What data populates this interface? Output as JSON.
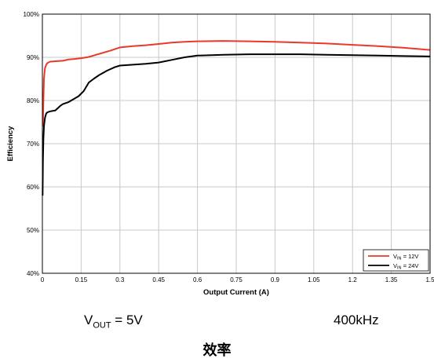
{
  "chart_data": {
    "type": "line",
    "title": "",
    "xlabel": "Output Current (A)",
    "ylabel": "Efficiency",
    "xlim": [
      0,
      1.5
    ],
    "ylim": [
      40,
      100
    ],
    "x_ticks": [
      "0",
      "0.15",
      "0.3",
      "0.45",
      "0.6",
      "0.75",
      "0.9",
      "1.05",
      "1.2",
      "1.35",
      "1.5"
    ],
    "y_ticks": [
      "40%",
      "50%",
      "60%",
      "70%",
      "80%",
      "90%",
      "100%"
    ],
    "grid": true,
    "legend_position": "bottom-right",
    "series": [
      {
        "name_main": "V",
        "name_sub": "IN",
        "name_rest": " = 12V",
        "color": "#e8392a",
        "x": [
          0.002,
          0.004,
          0.006,
          0.01,
          0.015,
          0.02,
          0.03,
          0.05,
          0.08,
          0.1,
          0.12,
          0.15,
          0.18,
          0.22,
          0.26,
          0.3,
          0.35,
          0.4,
          0.45,
          0.5,
          0.55,
          0.6,
          0.7,
          0.8,
          0.9,
          1.0,
          1.1,
          1.2,
          1.3,
          1.4,
          1.5
        ],
        "y": [
          74,
          80,
          85,
          87.5,
          88.3,
          88.7,
          89,
          89.1,
          89.2,
          89.5,
          89.6,
          89.8,
          90.1,
          90.8,
          91.5,
          92.3,
          92.6,
          92.8,
          93.1,
          93.4,
          93.6,
          93.7,
          93.8,
          93.7,
          93.6,
          93.4,
          93.2,
          92.9,
          92.6,
          92.2,
          91.7
        ]
      },
      {
        "name_main": "V",
        "name_sub": "IN",
        "name_rest": " = 24V",
        "color": "#000000",
        "x": [
          0.001,
          0.002,
          0.004,
          0.006,
          0.01,
          0.015,
          0.02,
          0.03,
          0.05,
          0.07,
          0.08,
          0.1,
          0.12,
          0.14,
          0.16,
          0.18,
          0.2,
          0.22,
          0.25,
          0.28,
          0.3,
          0.35,
          0.4,
          0.45,
          0.5,
          0.55,
          0.6,
          0.7,
          0.8,
          0.9,
          1.0,
          1.1,
          1.2,
          1.3,
          1.4,
          1.5
        ],
        "y": [
          58,
          66,
          71,
          74,
          76,
          77,
          77.3,
          77.5,
          77.7,
          78.8,
          79.2,
          79.6,
          80.3,
          81.0,
          82.2,
          84.2,
          85.1,
          85.9,
          86.9,
          87.7,
          88.1,
          88.3,
          88.5,
          88.8,
          89.4,
          90.0,
          90.4,
          90.6,
          90.7,
          90.7,
          90.7,
          90.6,
          90.5,
          90.4,
          90.3,
          90.2
        ]
      }
    ]
  },
  "captions": {
    "vout_main": "V",
    "vout_sub": "OUT",
    "vout_rest": " = 5V",
    "frequency": "400kHz",
    "title": "效率"
  }
}
